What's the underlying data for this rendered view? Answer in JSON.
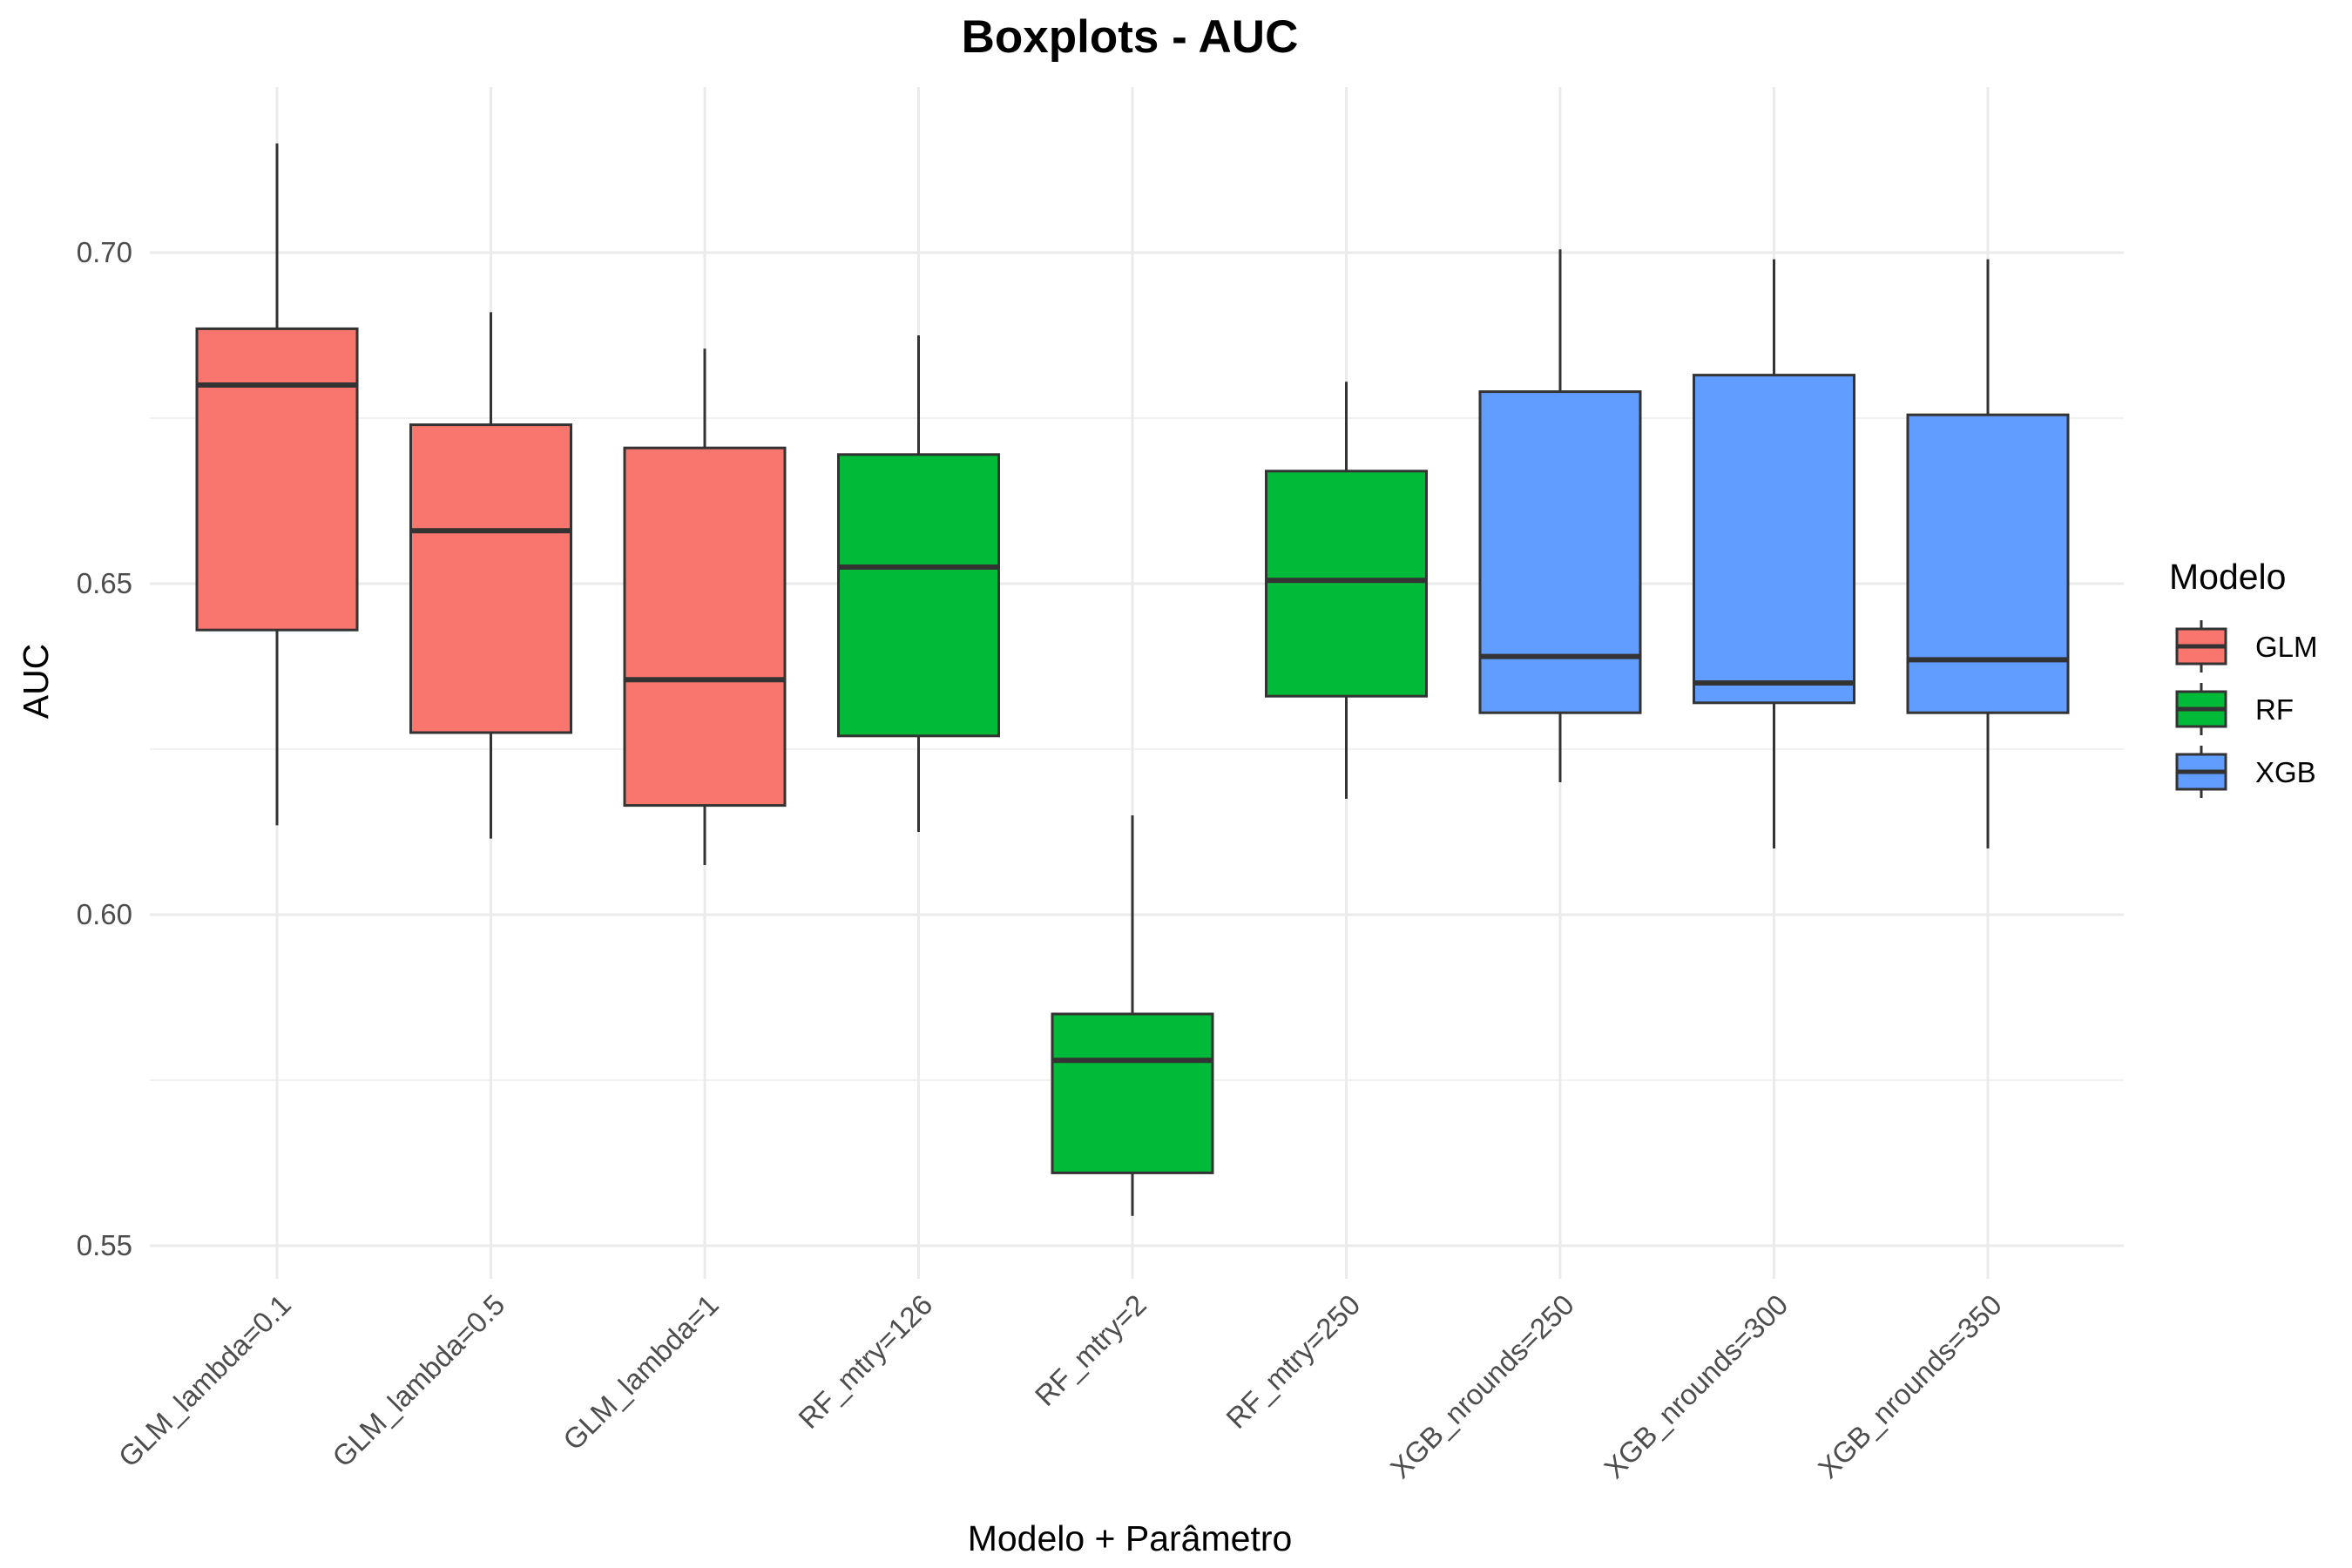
{
  "chart_data": {
    "type": "boxplot",
    "title": "Boxplots - AUC",
    "xlabel": "Modelo + Parâmetro",
    "ylabel": "AUC",
    "ylim": [
      0.545,
      0.725
    ],
    "yticks": [
      0.55,
      0.6,
      0.65,
      0.7
    ],
    "ytick_labels": [
      "0.55",
      "0.60",
      "0.65",
      "0.70"
    ],
    "grid": true,
    "legend": {
      "title": "Modelo",
      "position": "right",
      "entries": [
        {
          "name": "GLM",
          "color": "#F8766D"
        },
        {
          "name": "RF",
          "color": "#00BA38"
        },
        {
          "name": "XGB",
          "color": "#619CFF"
        }
      ]
    },
    "categories": [
      "GLM_lambda=0.1",
      "GLM_lambda=0.5",
      "GLM_lambda=1",
      "RF_mtry=126",
      "RF_mtry=2",
      "RF_mtry=250",
      "XGB_nrounds=250",
      "XGB_nrounds=300",
      "XGB_nrounds=350"
    ],
    "groups": [
      "GLM",
      "GLM",
      "GLM",
      "RF",
      "RF",
      "RF",
      "XGB",
      "XGB",
      "XGB"
    ],
    "boxes": [
      {
        "min": 0.6135,
        "q1": 0.643,
        "median": 0.68,
        "q3": 0.6885,
        "max": 0.7165
      },
      {
        "min": 0.6115,
        "q1": 0.6275,
        "median": 0.658,
        "q3": 0.674,
        "max": 0.691
      },
      {
        "min": 0.6075,
        "q1": 0.6165,
        "median": 0.6355,
        "q3": 0.6705,
        "max": 0.6855
      },
      {
        "min": 0.6125,
        "q1": 0.627,
        "median": 0.6525,
        "q3": 0.6695,
        "max": 0.6875
      },
      {
        "min": 0.5545,
        "q1": 0.561,
        "median": 0.578,
        "q3": 0.585,
        "max": 0.615
      },
      {
        "min": 0.6175,
        "q1": 0.633,
        "median": 0.6505,
        "q3": 0.667,
        "max": 0.6805
      },
      {
        "min": 0.62,
        "q1": 0.6305,
        "median": 0.639,
        "q3": 0.679,
        "max": 0.7005
      },
      {
        "min": 0.61,
        "q1": 0.632,
        "median": 0.635,
        "q3": 0.6815,
        "max": 0.699
      },
      {
        "min": 0.61,
        "q1": 0.6305,
        "median": 0.6385,
        "q3": 0.6755,
        "max": 0.699
      }
    ]
  }
}
